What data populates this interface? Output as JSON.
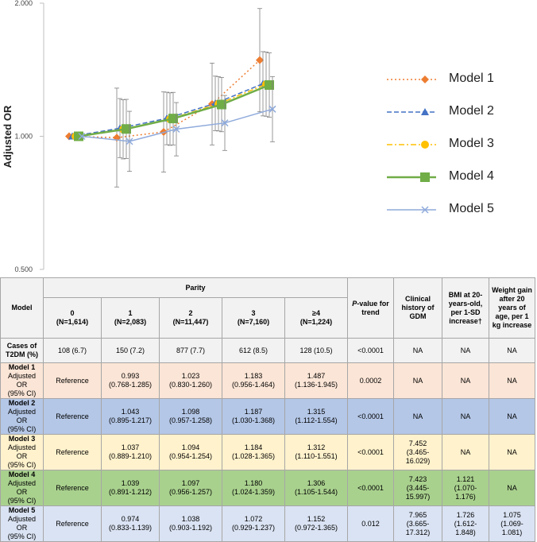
{
  "chart_data": {
    "type": "line",
    "ylabel": "Adjusted OR",
    "yscale": "log",
    "ylim": [
      0.5,
      2.0
    ],
    "yticks": [
      "0.500",
      "1.000",
      "2.000"
    ],
    "yticks_values": [
      0.5,
      1.0,
      2.0
    ],
    "x_categories": [
      "0",
      "1",
      "2",
      "3",
      "≥4"
    ],
    "legend_position": "right",
    "grid": false,
    "series": [
      {
        "name": "Model 1",
        "color": "#ed7d31",
        "marker": "diamond",
        "linestyle": "dotted",
        "values": [
          1.0,
          0.993,
          1.023,
          1.183,
          1.487
        ],
        "lower": [
          1.0,
          0.768,
          0.83,
          0.956,
          1.136
        ],
        "upper": [
          1.0,
          1.285,
          1.26,
          1.464,
          1.945
        ]
      },
      {
        "name": "Model 2",
        "color": "#4472c4",
        "marker": "triangle",
        "linestyle": "dashed",
        "values": [
          1.0,
          1.043,
          1.098,
          1.187,
          1.315
        ],
        "lower": [
          1.0,
          0.895,
          0.957,
          1.03,
          1.112
        ],
        "upper": [
          1.0,
          1.217,
          1.258,
          1.368,
          1.554
        ]
      },
      {
        "name": "Model 3",
        "color": "#ffc000",
        "marker": "circle",
        "linestyle": "dashdot",
        "values": [
          1.0,
          1.037,
          1.094,
          1.184,
          1.312
        ],
        "lower": [
          1.0,
          0.889,
          0.954,
          1.028,
          1.11
        ],
        "upper": [
          1.0,
          1.21,
          1.254,
          1.365,
          1.551
        ]
      },
      {
        "name": "Model 4",
        "color": "#70ad47",
        "marker": "square",
        "linestyle": "solid",
        "values": [
          1.0,
          1.039,
          1.097,
          1.18,
          1.306
        ],
        "lower": [
          1.0,
          0.891,
          0.956,
          1.024,
          1.105
        ],
        "upper": [
          1.0,
          1.212,
          1.257,
          1.359,
          1.544
        ]
      },
      {
        "name": "Model 5",
        "color": "#8faadc",
        "marker": "x",
        "linestyle": "solid",
        "values": [
          1.0,
          0.974,
          1.038,
          1.072,
          1.152
        ],
        "lower": [
          1.0,
          0.833,
          0.903,
          0.929,
          0.972
        ],
        "upper": [
          1.0,
          1.139,
          1.192,
          1.237,
          1.365
        ]
      }
    ]
  },
  "table": {
    "model_header": "Model",
    "parity_header": "Parity",
    "parity_columns": [
      {
        "label": "0",
        "n": "(N=1,614)"
      },
      {
        "label": "1",
        "n": "(N=2,083)"
      },
      {
        "label": "2",
        "n": "(N=11,447)"
      },
      {
        "label": "3",
        "n": "(N=7,160)"
      },
      {
        "label": "≥4",
        "n": "(N=1,224)"
      }
    ],
    "p_header_italic": "P",
    "p_header_rest": "-value for trend",
    "gdm_header": "Clinical history of GDM",
    "bmi_header": "BMI at 20-years-old, per 1-SD increase†",
    "weight_header": "Weight gain after 20 years of age, per 1 kg increase",
    "cases_row": {
      "title": "Cases of",
      "subtitle": "T2DM (%)",
      "values": [
        "108 (6.7)",
        "150 (7.2)",
        "877 (7.7)",
        "612 (8.5)",
        "128 (10.5)"
      ],
      "p": "<0.0001",
      "gdm": "NA",
      "bmi": "NA",
      "weight": "NA"
    },
    "models": [
      {
        "title": "Model 1",
        "subtitle": "Adjusted OR",
        "ci_label": "(95% CI)",
        "reference": "Reference",
        "cells": [
          [
            "0.993",
            "(0.768-1.285)"
          ],
          [
            "1.023",
            "(0.830-1.260)"
          ],
          [
            "1.183",
            "(0.956-1.464)"
          ],
          [
            "1.487",
            "(1.136-1.945)"
          ]
        ],
        "p": "0.0002",
        "gdm": [
          "NA",
          ""
        ],
        "bmi": [
          "NA",
          ""
        ],
        "weight": [
          "NA",
          ""
        ]
      },
      {
        "title": "Model 2",
        "subtitle": "Adjusted OR",
        "ci_label": "(95% CI)",
        "reference": "Reference",
        "cells": [
          [
            "1.043",
            "(0.895-1.217)"
          ],
          [
            "1.098",
            "(0.957-1.258)"
          ],
          [
            "1.187",
            "(1.030-1.368)"
          ],
          [
            "1.315",
            "(1.112-1.554)"
          ]
        ],
        "p": "<0.0001",
        "gdm": [
          "NA",
          ""
        ],
        "bmi": [
          "NA",
          ""
        ],
        "weight": [
          "NA",
          ""
        ]
      },
      {
        "title": "Model 3",
        "subtitle": "Adjusted OR",
        "ci_label": "(95% CI)",
        "reference": "Reference",
        "cells": [
          [
            "1.037",
            "(0.889-1.210)"
          ],
          [
            "1.094",
            "(0.954-1.254)"
          ],
          [
            "1.184",
            "(1.028-1.365)"
          ],
          [
            "1.312",
            "(1.110-1.551)"
          ]
        ],
        "p": "<0.0001",
        "gdm": [
          "7.452",
          "(3.465-16.029)"
        ],
        "bmi": [
          "NA",
          ""
        ],
        "weight": [
          "NA",
          ""
        ]
      },
      {
        "title": "Model 4",
        "subtitle": "Adjusted OR",
        "ci_label": "(95% CI)",
        "reference": "Reference",
        "cells": [
          [
            "1.039",
            "(0.891-1.212)"
          ],
          [
            "1.097",
            "(0.956-1.257)"
          ],
          [
            "1.180",
            "(1.024-1.359)"
          ],
          [
            "1.306",
            "(1.105-1.544)"
          ]
        ],
        "p": "<0.0001",
        "gdm": [
          "7.423",
          "(3.445-15.997)"
        ],
        "bmi": [
          "1.121",
          "(1.070-1.176)"
        ],
        "weight": [
          "NA",
          ""
        ]
      },
      {
        "title": "Model 5",
        "subtitle": "Adjusted OR",
        "ci_label": "(95% CI)",
        "reference": "Reference",
        "cells": [
          [
            "0.974",
            "(0.833-1.139)"
          ],
          [
            "1.038",
            "(0.903-1.192)"
          ],
          [
            "1.072",
            "(0.929-1.237)"
          ],
          [
            "1.152",
            "(0.972-1.365)"
          ]
        ],
        "p": "0.012",
        "gdm": [
          "7.965",
          "(3.665-17.312)"
        ],
        "bmi": [
          "1.726",
          "(1.612-1.848)"
        ],
        "weight": [
          "1.075",
          "(1.069-1.081)"
        ]
      }
    ]
  }
}
